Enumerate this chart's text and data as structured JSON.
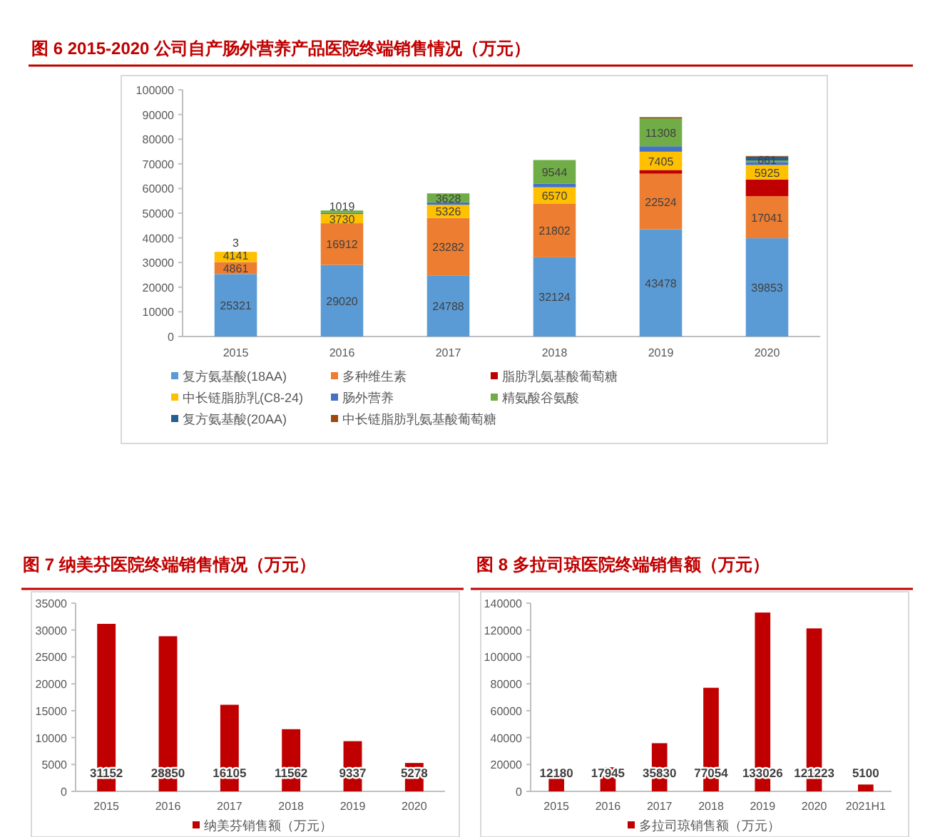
{
  "chart_data": [
    {
      "type": "bar",
      "title": "图 6  2015-2020 公司自产肠外营养产品医院终端销售情况（万元）",
      "categories": [
        "2015",
        "2016",
        "2017",
        "2018",
        "2019",
        "2020"
      ],
      "stacked": true,
      "ylim": [
        0,
        100000
      ],
      "yticks": [
        0,
        10000,
        20000,
        30000,
        40000,
        50000,
        60000,
        70000,
        80000,
        90000,
        100000
      ],
      "legend": "bottom",
      "series": [
        {
          "name": "复方氨基酸(18AA)",
          "color": "#5b9bd5",
          "values": [
            25321,
            29020,
            24788,
            32124,
            43478,
            39853
          ],
          "value_labels": [
            "25321",
            "29020",
            "24788",
            "32124",
            "43478",
            "39853"
          ]
        },
        {
          "name": "多种维生素",
          "color": "#ed7d31",
          "values": [
            4861,
            16912,
            23282,
            21802,
            22524,
            17041
          ],
          "value_labels": [
            "4861",
            "16912",
            "23282",
            "21802",
            "22524",
            "17041"
          ]
        },
        {
          "name": "脂肪乳氨基酸葡萄糖",
          "color": "#c00000",
          "values": [
            0,
            0,
            0,
            0,
            1500,
            6700
          ],
          "value_labels": [
            null,
            null,
            null,
            null,
            null,
            null
          ]
        },
        {
          "name": "中长链脂肪乳(C8-24)",
          "color": "#ffc000",
          "values": [
            4141,
            3730,
            5326,
            6570,
            7405,
            5925
          ],
          "value_labels": [
            "4141",
            "3730",
            "5326",
            "6570",
            "7405",
            "5925"
          ]
        },
        {
          "name": "肠外营养",
          "color": "#4472c4",
          "values": [
            0,
            400,
            1000,
            1500,
            2200,
            1200
          ],
          "value_labels": [
            null,
            null,
            null,
            null,
            null,
            null
          ]
        },
        {
          "name": "精氨酸谷氨酸",
          "color": "#70ad47",
          "values": [
            3,
            1019,
            3628,
            9544,
            11308,
            661
          ],
          "value_labels": [
            "3",
            "1019",
            "3628",
            "9544",
            "11308",
            "661"
          ]
        },
        {
          "name": "复方氨基酸(20AA)",
          "color": "#255e91",
          "values": [
            0,
            0,
            0,
            0,
            0,
            1500
          ],
          "value_labels": [
            null,
            null,
            null,
            null,
            null,
            null
          ]
        },
        {
          "name": "中长链脂肪乳氨基酸葡萄糖",
          "color": "#9e480e",
          "values": [
            0,
            0,
            0,
            0,
            500,
            300
          ],
          "value_labels": [
            null,
            null,
            null,
            null,
            null,
            null
          ]
        }
      ]
    },
    {
      "type": "bar",
      "title": "图 7 纳美芬医院终端销售情况（万元）",
      "categories": [
        "2015",
        "2016",
        "2017",
        "2018",
        "2019",
        "2020"
      ],
      "ylim": [
        0,
        35000
      ],
      "yticks": [
        0,
        5000,
        10000,
        15000,
        20000,
        25000,
        30000,
        35000
      ],
      "legend": "bottom",
      "data_labels": true,
      "series": [
        {
          "name": "纳美芬销售额（万元）",
          "color": "#c00000",
          "values": [
            31152,
            28850,
            16105,
            11562,
            9337,
            5278
          ]
        }
      ]
    },
    {
      "type": "bar",
      "title": "图 8 多拉司琼医院终端销售额（万元）",
      "categories": [
        "2015",
        "2016",
        "2017",
        "2018",
        "2019",
        "2020",
        "2021H1"
      ],
      "ylim": [
        0,
        140000
      ],
      "yticks": [
        0,
        20000,
        40000,
        60000,
        80000,
        100000,
        120000,
        140000
      ],
      "legend": "bottom",
      "data_labels": true,
      "series": [
        {
          "name": "多拉司琼销售额（万元）",
          "color": "#c00000",
          "values": [
            12180,
            17945,
            35830,
            77054,
            133026,
            121223,
            5100
          ]
        }
      ]
    }
  ]
}
